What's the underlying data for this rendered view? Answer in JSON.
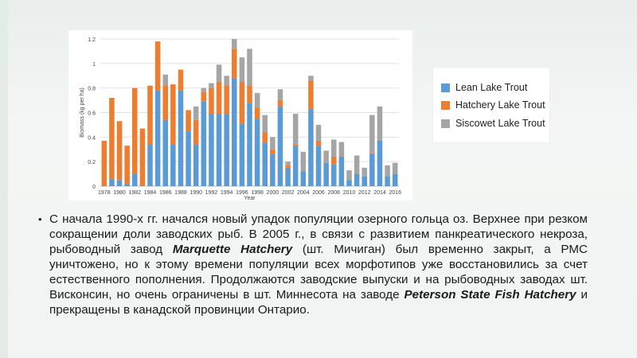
{
  "colors": {
    "lean": "#5b9bd5",
    "hatchery": "#ed7d31",
    "siscowet": "#a5a5a5"
  },
  "chart_data": {
    "type": "bar",
    "stacked": true,
    "xlabel": "Year",
    "ylabel": "Biomass (kg per ha)",
    "ylim": [
      0,
      1.2
    ],
    "yticks": [
      "0",
      "0.2",
      "0.4",
      "0.6",
      "0.8",
      "1",
      "1.2"
    ],
    "xticks": [
      "1978",
      "1980",
      "1982",
      "1984",
      "1986",
      "1988",
      "1990",
      "1992",
      "1994",
      "1996",
      "1998",
      "2000",
      "2002",
      "2004",
      "2006",
      "2008",
      "2010",
      "2012",
      "2014",
      "2016"
    ],
    "grid": true,
    "legend_position": "top-right",
    "categories": [
      "1978",
      "1979",
      "1980",
      "1981",
      "1982",
      "1983",
      "1984",
      "1985",
      "1986",
      "1987",
      "1988",
      "1989",
      "1990",
      "1991",
      "1992",
      "1993",
      "1994",
      "1995",
      "1996",
      "1997",
      "1998",
      "1999",
      "2000",
      "2001",
      "2002",
      "2003",
      "2004",
      "2005",
      "2006",
      "2007",
      "2008",
      "2009",
      "2010",
      "2011",
      "2012",
      "2013",
      "2014",
      "2015",
      "2016"
    ],
    "series": [
      {
        "name": "Lean Lake Trout",
        "values": [
          0.0,
          0.06,
          0.05,
          0.02,
          0.1,
          0.0,
          0.34,
          0.78,
          0.54,
          0.34,
          0.78,
          0.45,
          0.34,
          0.69,
          0.59,
          0.59,
          0.59,
          0.88,
          0.51,
          0.68,
          0.55,
          0.35,
          0.26,
          0.65,
          0.15,
          0.33,
          0.12,
          0.63,
          0.33,
          0.19,
          0.18,
          0.24,
          0.05,
          0.1,
          0.08,
          0.26,
          0.37,
          0.08,
          0.1
        ]
      },
      {
        "name": "Hatchery Lake Trout",
        "values": [
          0.37,
          0.66,
          0.48,
          0.31,
          0.7,
          0.47,
          0.48,
          0.4,
          0.28,
          0.49,
          0.17,
          0.17,
          0.2,
          0.08,
          0.21,
          0.26,
          0.23,
          0.24,
          0.34,
          0.14,
          0.09,
          0.09,
          0.04,
          0.05,
          0.02,
          0.01,
          0.0,
          0.23,
          0.04,
          0.0,
          0.06,
          0.0,
          0.0,
          0.0,
          0.0,
          0.01,
          0.0,
          0.0,
          0.0
        ]
      },
      {
        "name": "Siscowet Lake Trout",
        "values": [
          0.0,
          0.0,
          0.0,
          0.0,
          0.0,
          0.0,
          0.0,
          0.0,
          0.09,
          0.0,
          0.0,
          0.0,
          0.11,
          0.03,
          0.04,
          0.14,
          0.08,
          0.08,
          0.2,
          0.3,
          0.12,
          0.14,
          0.1,
          0.09,
          0.03,
          0.25,
          0.16,
          0.04,
          0.13,
          0.1,
          0.14,
          0.12,
          0.08,
          0.15,
          0.07,
          0.31,
          0.28,
          0.09,
          0.09
        ]
      }
    ]
  },
  "legend": {
    "items": [
      {
        "label": "Lean Lake Trout",
        "color": "#5b9bd5"
      },
      {
        "label": "Hatchery Lake Trout",
        "color": "#ed7d31"
      },
      {
        "label": "Siscowet Lake Trout",
        "color": "#a5a5a5"
      }
    ]
  },
  "text": {
    "bullet": "•",
    "p1": "С начала 1990-х гг. начался новый упадок популяции озерного гольца оз. Верхнее при резком сокращении доли заводских рыб. В 2005 г., в связи с развитием панкреатического некроза, рыбоводный завод ",
    "b1": "Marquette Hatchery",
    "p2": " (шт. Мичиган) был временно закрыт, а РМС уничтожено, но к этому времени популяции всех морфотипов уже восстановились за счет естественного пополнения. Продолжаются заводские выпуски и на рыбоводных заводах шт. Висконсин, но очень ограничены в шт. Миннесота на заводе ",
    "b2": "Peterson State Fish Hatchery",
    "p3": " и прекращены в канадской провинции Онтарио."
  }
}
